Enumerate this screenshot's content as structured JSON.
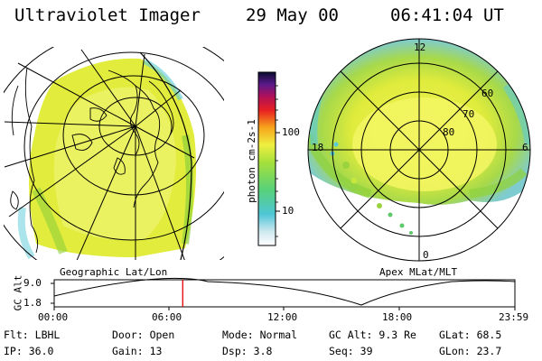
{
  "header": {
    "app_title": "Ultraviolet Imager",
    "date": "29 May 00",
    "time": "06:41:04 UT"
  },
  "colorbar": {
    "label": "photon cm-2s-1",
    "ticks": [
      "100",
      "10"
    ]
  },
  "panels": {
    "left_label": "Geographic Lat/Lon",
    "right_label": "Apex MLat/MLT"
  },
  "polar_map": {
    "mlt_labels": [
      "12",
      "18",
      "6",
      "0"
    ],
    "lat_labels": [
      "60",
      "70",
      "80"
    ]
  },
  "orbit_plot": {
    "ylabel": "GC Alt",
    "yticks": [
      "9.0",
      "1.8"
    ],
    "xticks": [
      "00:00",
      "06:00",
      "12:00",
      "18:00",
      "23:59"
    ],
    "current_time_fraction": 0.279
  },
  "status": {
    "filter": {
      "label": "Flt:",
      "value": "LBHL"
    },
    "ip": {
      "label": "IP:",
      "value": "36.0"
    },
    "door": {
      "label": "Door:",
      "value": "Open"
    },
    "gain": {
      "label": "Gain:",
      "value": "13"
    },
    "mode": {
      "label": "Mode:",
      "value": "Normal"
    },
    "dsp": {
      "label": "Dsp:",
      "value": "3.8"
    },
    "gc_alt": {
      "label": "GC Alt:",
      "value": "9.3 Re"
    },
    "seq": {
      "label": "Seq:",
      "value": "39"
    },
    "glat": {
      "label": "GLat:",
      "value": "68.5"
    },
    "glon": {
      "label": "GLon:",
      "value": "23.7"
    }
  },
  "colors": {
    "aurora_yellow": "#e6ef3a",
    "aurora_green": "#8fd13a",
    "aurora_cyan": "#58c9d8"
  }
}
